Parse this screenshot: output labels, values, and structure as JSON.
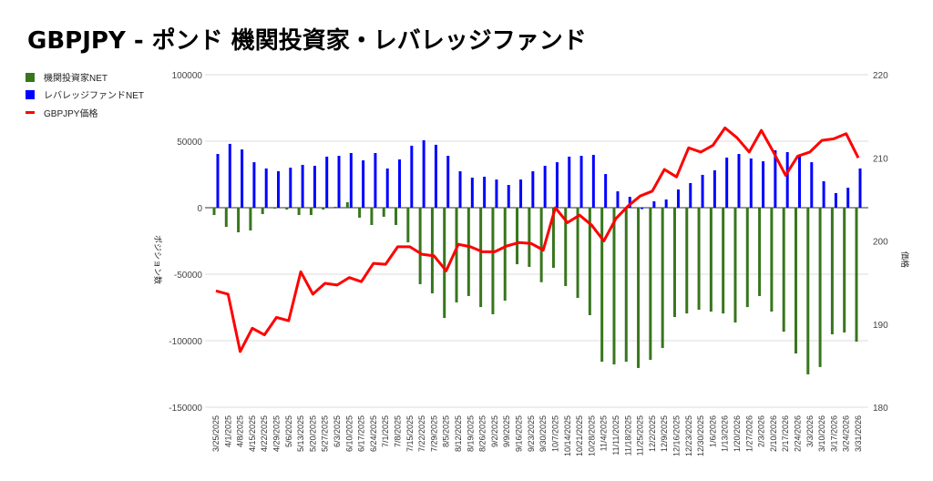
{
  "chart_data": {
    "type": "bar+line",
    "title": "GBPJPY - ポンド 機関投資家・レバレッジファンド",
    "ylabel": "ポジション数",
    "y2label": "価格",
    "ylim": [
      -150000,
      100000
    ],
    "y2lim": [
      180,
      220
    ],
    "yticks": [
      "100000",
      "50000",
      "0",
      "-50000",
      "-100000",
      "-150000"
    ],
    "y2ticks": [
      "220",
      "210",
      "200",
      "190",
      "180"
    ],
    "legend_position": "left",
    "grid": true,
    "colors": {
      "institutional": "#38761d",
      "leveraged": "#0000ff",
      "price": "#ff0000"
    },
    "categories": [
      "3/25/2025",
      "4/1/2025",
      "4/8/2025",
      "4/15/2025",
      "4/22/2025",
      "4/29/2025",
      "5/6/2025",
      "5/13/2025",
      "5/20/2025",
      "5/27/2025",
      "6/3/2025",
      "6/10/2025",
      "6/17/2025",
      "6/24/2025",
      "7/1/2025",
      "7/8/2025",
      "7/15/2025",
      "7/22/2025",
      "7/29/2025",
      "8/5/2025",
      "8/12/2025",
      "8/19/2025",
      "8/26/2025",
      "9/2/2025",
      "9/9/2025",
      "9/16/2025",
      "9/23/2025",
      "9/30/2025",
      "10/7/2025",
      "10/14/2025",
      "10/21/2025",
      "10/28/2025",
      "11/4/2025",
      "11/11/2025",
      "11/18/2025",
      "11/25/2025",
      "12/2/2025",
      "12/9/2025",
      "12/16/2025",
      "12/23/2025",
      "12/30/2025",
      "1/6/2026",
      "1/13/2026",
      "1/20/2026",
      "1/27/2026",
      "2/3/2026",
      "2/10/2026",
      "2/17/2026",
      "2/24/2026",
      "3/3/2026",
      "3/10/2026",
      "3/17/2026",
      "3/24/2026",
      "3/31/2026"
    ],
    "series": [
      {
        "name": "機関投資家NET",
        "axis": "left",
        "kind": "bar",
        "values": [
          -5500,
          -14400,
          -18500,
          -17100,
          -4800,
          -700,
          -1400,
          -5500,
          -5500,
          -1400,
          700,
          4100,
          -7500,
          -13000,
          -6800,
          -13000,
          -26000,
          -57500,
          -64400,
          -82900,
          -71200,
          -66400,
          -74700,
          -80100,
          -69900,
          -42500,
          -44500,
          -56000,
          -45200,
          -58900,
          -67800,
          -80800,
          -115800,
          -117800,
          -115800,
          -120500,
          -114400,
          -105500,
          -82200,
          -79500,
          -76700,
          -78100,
          -79500,
          -86300,
          -74700,
          -66400,
          -78100,
          -93200,
          -109600,
          -125300,
          -119800,
          -95200,
          -93800,
          -100700
        ]
      },
      {
        "name": "レバレッジファンドNET",
        "axis": "left",
        "kind": "bar",
        "values": [
          40400,
          48000,
          43800,
          34200,
          29500,
          27400,
          30100,
          32200,
          31500,
          38400,
          39000,
          41100,
          35600,
          41100,
          29500,
          36300,
          46600,
          50700,
          47300,
          39000,
          27400,
          22600,
          23300,
          21200,
          17100,
          21200,
          27400,
          31500,
          34200,
          38400,
          39000,
          39700,
          25300,
          12300,
          8200,
          -1000,
          4800,
          6200,
          13700,
          18500,
          24700,
          28100,
          37700,
          40400,
          37000,
          34900,
          43200,
          41800,
          38400,
          34200,
          19900,
          11000,
          15000,
          29500
        ]
      },
      {
        "name": "GBPJPY価格",
        "axis": "right",
        "kind": "line",
        "values": [
          194.0,
          193.6,
          186.7,
          189.5,
          188.7,
          190.8,
          190.4,
          196.3,
          193.6,
          194.9,
          194.7,
          195.6,
          195.1,
          197.3,
          197.2,
          199.3,
          199.3,
          198.4,
          198.2,
          196.4,
          199.6,
          199.3,
          198.7,
          198.7,
          199.4,
          199.8,
          199.7,
          198.9,
          204.0,
          202.2,
          203.1,
          201.9,
          200.0,
          202.7,
          204.2,
          205.4,
          206.0,
          208.6,
          207.7,
          211.2,
          210.7,
          211.5,
          213.6,
          212.4,
          210.7,
          213.3,
          210.7,
          207.9,
          210.2,
          210.7,
          212.1,
          212.3,
          212.9,
          210.0
        ]
      }
    ]
  }
}
